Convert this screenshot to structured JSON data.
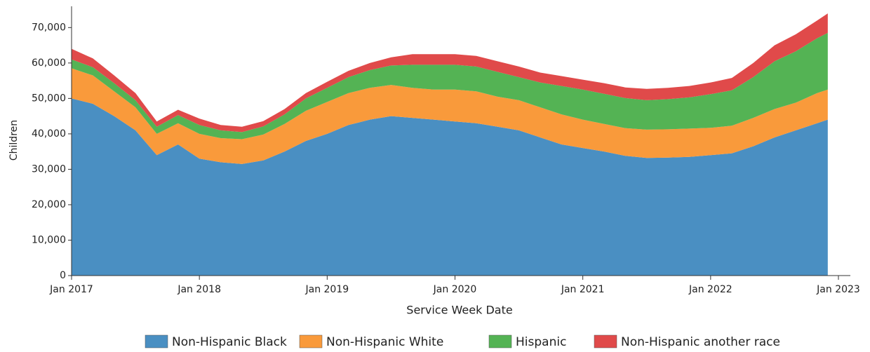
{
  "chart_data": {
    "type": "stacked_area",
    "xlabel": "Service Week Date",
    "ylabel": "Children",
    "x": [
      "2017-01",
      "2017-03",
      "2017-05",
      "2017-07",
      "2017-09",
      "2017-11",
      "2018-01",
      "2018-03",
      "2018-05",
      "2018-07",
      "2018-09",
      "2018-11",
      "2019-01",
      "2019-03",
      "2019-05",
      "2019-07",
      "2019-09",
      "2019-11",
      "2020-01",
      "2020-03",
      "2020-05",
      "2020-07",
      "2020-09",
      "2020-11",
      "2021-01",
      "2021-03",
      "2021-05",
      "2021-07",
      "2021-09",
      "2021-11",
      "2022-01",
      "2022-03",
      "2022-05",
      "2022-07",
      "2022-09",
      "2022-11",
      "2022-12"
    ],
    "series": [
      {
        "name": "Non-Hispanic Black",
        "color": "#4a8fc2",
        "values": [
          50000,
          48500,
          45000,
          41000,
          34000,
          37000,
          33000,
          32000,
          31500,
          32500,
          35000,
          38000,
          40000,
          42500,
          44000,
          45000,
          44500,
          44000,
          43500,
          43000,
          42000,
          41000,
          39000,
          37000,
          36000,
          35000,
          33800,
          33200,
          33300,
          33500,
          34000,
          34500,
          36500,
          39000,
          41000,
          43000,
          44000
        ]
      },
      {
        "name": "Non-Hispanic White",
        "color": "#f99a3b",
        "values": [
          8500,
          8000,
          7000,
          6500,
          6000,
          6000,
          7000,
          6800,
          7000,
          7300,
          7800,
          8500,
          9000,
          9000,
          9000,
          8800,
          8500,
          8500,
          9000,
          9000,
          8500,
          8500,
          8500,
          8500,
          8000,
          7800,
          7800,
          8000,
          8000,
          8000,
          7700,
          7800,
          8000,
          8000,
          7800,
          8500,
          8500
        ]
      },
      {
        "name": "Hispanic",
        "color": "#54b354",
        "values": [
          2500,
          2300,
          2300,
          2000,
          2000,
          2300,
          2500,
          2200,
          2000,
          2300,
          2700,
          3500,
          4000,
          4500,
          5000,
          5500,
          6500,
          7000,
          7000,
          7000,
          7000,
          6500,
          7000,
          8000,
          8500,
          8500,
          8500,
          8300,
          8500,
          8800,
          9500,
          10000,
          11500,
          13500,
          14500,
          15500,
          16000
        ]
      },
      {
        "name": "Non-Hispanic another race",
        "color": "#e04a4a",
        "values": [
          3000,
          2500,
          2200,
          2000,
          1500,
          1500,
          1800,
          1500,
          1500,
          1500,
          1500,
          1500,
          1700,
          1800,
          2000,
          2300,
          3000,
          3000,
          3000,
          3000,
          3000,
          3000,
          2800,
          2800,
          2800,
          3000,
          3000,
          3200,
          3200,
          3200,
          3300,
          3500,
          4000,
          4500,
          4800,
          5000,
          5500
        ]
      }
    ],
    "xlim": [
      "2017-01",
      "2023-01"
    ],
    "xticks": [
      {
        "value": "2017-01",
        "label": "Jan 2017"
      },
      {
        "value": "2018-01",
        "label": "Jan 2018"
      },
      {
        "value": "2019-01",
        "label": "Jan 2019"
      },
      {
        "value": "2020-01",
        "label": "Jan 2020"
      },
      {
        "value": "2021-01",
        "label": "Jan 2021"
      },
      {
        "value": "2022-01",
        "label": "Jan 2022"
      },
      {
        "value": "2023-01",
        "label": "Jan 2023"
      }
    ],
    "ylim": [
      0,
      76000
    ],
    "yticks": [
      0,
      {
        "value": 10000,
        "label": "10,000"
      },
      {
        "value": 20000,
        "label": "20,000"
      },
      {
        "value": 30000,
        "label": "30,000"
      },
      {
        "value": 40000,
        "label": "40,000"
      },
      {
        "value": 50000,
        "label": "50,000"
      },
      {
        "value": 60000,
        "label": "60,000"
      },
      {
        "value": 70000,
        "label": "70,000"
      }
    ],
    "legend": "bottom"
  }
}
